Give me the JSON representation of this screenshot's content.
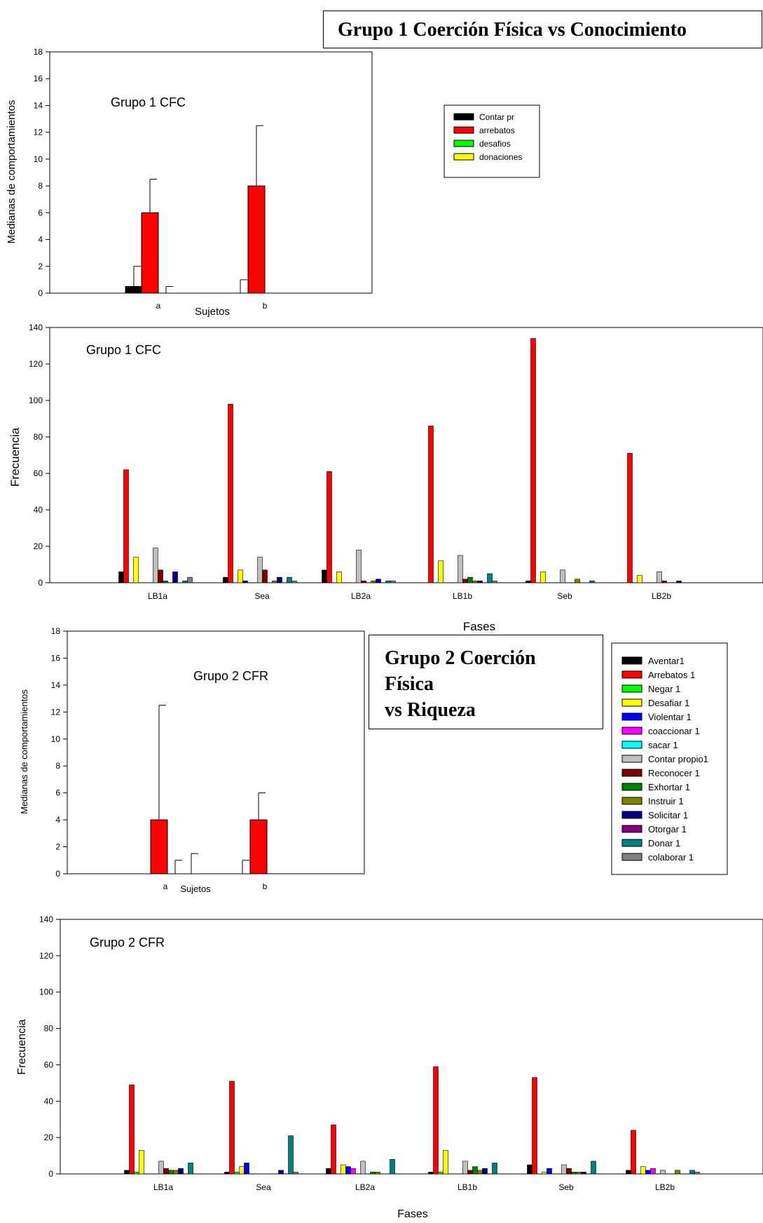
{
  "titles": {
    "group1": "Grupo 1 Coerción Física vs Conocimiento",
    "group2": [
      "Grupo 2 Coerción",
      "Física",
      "vs Riqueza"
    ]
  },
  "colors": {
    "Aventar1": "#000000",
    "Arrebatos 1": "#ff0000",
    "Negar 1": "#00ff00",
    "Desafiar 1": "#ffff00",
    "Violentar 1": "#0000ff",
    "coaccionar 1": "#ff00ff",
    "sacar 1": "#00ffff",
    "Contar propio1": "#c0c0c0",
    "Reconocer 1": "#800000",
    "Exhortar 1": "#008000",
    "Instruir 1": "#808000",
    "Solicitar 1": "#000080",
    "Otorgar 1": "#800080",
    "Donar 1": "#008080",
    "colaborar 1": "#808080"
  },
  "legend_small": [
    {
      "label": "Contar pr",
      "color": "#000000"
    },
    {
      "label": "arrebatos",
      "color": "#ff0000"
    },
    {
      "label": "desafios",
      "color": "#00ff00"
    },
    {
      "label": "donaciones",
      "color": "#ffff00"
    }
  ],
  "legend_large": [
    "Aventar1",
    "Arrebatos 1",
    "Negar 1",
    "Desafiar 1",
    "Violentar 1",
    "coaccionar 1",
    "sacar 1",
    "Contar propio1",
    "Reconocer 1",
    "Exhortar 1",
    "Instruir 1",
    "Solicitar 1",
    "Otorgar 1",
    "Donar 1",
    "colaborar 1"
  ],
  "chart_data": [
    {
      "id": "g1-medianas",
      "type": "bar",
      "title": "Grupo 1 CFC",
      "xlabel": "Sujetos",
      "ylabel": "Medianas de comportamientos",
      "ylim": [
        0,
        18
      ],
      "yticks": [
        0,
        2,
        4,
        6,
        8,
        10,
        12,
        14,
        16,
        18
      ],
      "categories": [
        "a",
        "b"
      ],
      "series": [
        {
          "name": "Contar pr",
          "values": [
            0.5,
            0
          ],
          "error": [
            2,
            1
          ]
        },
        {
          "name": "arrebatos",
          "values": [
            6,
            8
          ],
          "error": [
            8.5,
            12.5
          ]
        },
        {
          "name": "desafios",
          "values": [
            0,
            0
          ],
          "error": [
            0.5,
            null
          ]
        },
        {
          "name": "donaciones",
          "values": [
            0,
            0
          ],
          "error": [
            null,
            null
          ]
        }
      ],
      "legend": "top-right"
    },
    {
      "id": "g1-frecuencia",
      "type": "bar",
      "title": "Grupo 1 CFC",
      "xlabel": "Fases",
      "ylabel": "Frecuencia",
      "ylim": [
        0,
        140
      ],
      "yticks": [
        0,
        20,
        40,
        60,
        80,
        100,
        120,
        140
      ],
      "categories": [
        "LB1a",
        "Sea",
        "LB2a",
        "LB1b",
        "Seb",
        "LB2b"
      ],
      "series_order": [
        "Aventar1",
        "Arrebatos 1",
        "Negar 1",
        "Desafiar 1",
        "Violentar 1",
        "coaccionar 1",
        "sacar 1",
        "Contar propio1",
        "Reconocer 1",
        "Exhortar 1",
        "Instruir 1",
        "Solicitar 1",
        "Otorgar 1",
        "Donar 1",
        "colaborar 1"
      ],
      "values": [
        [
          6,
          62,
          0,
          14,
          0,
          0,
          0,
          19,
          7,
          1,
          0,
          6,
          0,
          1,
          3
        ],
        [
          3,
          98,
          0,
          7,
          1,
          0,
          0,
          14,
          7,
          0,
          1,
          3,
          0,
          3,
          1
        ],
        [
          7,
          61,
          0,
          6,
          0,
          0,
          0,
          18,
          1,
          0,
          1,
          2,
          0,
          1,
          1
        ],
        [
          0,
          86,
          0,
          12,
          0,
          0,
          0,
          15,
          2,
          3,
          1,
          1,
          0,
          5,
          1
        ],
        [
          1,
          134,
          0,
          6,
          0,
          0,
          0,
          7,
          0,
          0,
          2,
          0,
          0,
          1,
          0
        ],
        [
          0,
          71,
          0,
          4,
          0,
          0,
          0,
          6,
          1,
          0,
          0,
          1,
          0,
          0,
          0
        ]
      ]
    },
    {
      "id": "g2-medianas",
      "type": "bar",
      "title": "Grupo 2 CFR",
      "xlabel": "Sujetos",
      "ylabel": "Medianas de comportamientos",
      "ylim": [
        0,
        18
      ],
      "yticks": [
        0,
        2,
        4,
        6,
        8,
        10,
        12,
        14,
        16,
        18
      ],
      "categories": [
        "a",
        "b"
      ],
      "series": [
        {
          "name": "Contar pr",
          "values": [
            0,
            0
          ],
          "error": [
            null,
            1
          ]
        },
        {
          "name": "arrebatos",
          "values": [
            4,
            4
          ],
          "error": [
            12.5,
            6
          ]
        },
        {
          "name": "desafios",
          "values": [
            0,
            0
          ],
          "error": [
            1,
            null
          ]
        },
        {
          "name": "donaciones",
          "values": [
            0,
            0
          ],
          "error": [
            1.5,
            null
          ]
        }
      ]
    },
    {
      "id": "g2-frecuencia",
      "type": "bar",
      "title": "Grupo 2 CFR",
      "xlabel": "Fases",
      "ylabel": "Frecuencia",
      "ylim": [
        0,
        140
      ],
      "yticks": [
        0,
        20,
        40,
        60,
        80,
        100,
        120,
        140
      ],
      "categories": [
        "LB1a",
        "Sea",
        "LB2a",
        "LB1b",
        "Seb",
        "LB2b"
      ],
      "series_order": [
        "Aventar1",
        "Arrebatos 1",
        "Negar 1",
        "Desafiar 1",
        "Violentar 1",
        "coaccionar 1",
        "sacar 1",
        "Contar propio1",
        "Reconocer 1",
        "Exhortar 1",
        "Instruir 1",
        "Solicitar 1",
        "Otorgar 1",
        "Donar 1",
        "colaborar 1"
      ],
      "values": [
        [
          2,
          49,
          1,
          13,
          0,
          0,
          0,
          7,
          3,
          2,
          2,
          3,
          0,
          6,
          0
        ],
        [
          1,
          51,
          1,
          4,
          6,
          0,
          0,
          0,
          0,
          0,
          0,
          2,
          0,
          21,
          1
        ],
        [
          3,
          27,
          0,
          5,
          4,
          3,
          0,
          7,
          0,
          1,
          1,
          0,
          0,
          8,
          0
        ],
        [
          1,
          59,
          1,
          13,
          0,
          0,
          0,
          7,
          2,
          4,
          2,
          3,
          0,
          6,
          0
        ],
        [
          5,
          53,
          0,
          1,
          3,
          0,
          0,
          5,
          3,
          1,
          1,
          1,
          0,
          7,
          0
        ],
        [
          2,
          24,
          0,
          4,
          2,
          3,
          0,
          2,
          0,
          0,
          2,
          0,
          0,
          2,
          1
        ]
      ]
    }
  ]
}
